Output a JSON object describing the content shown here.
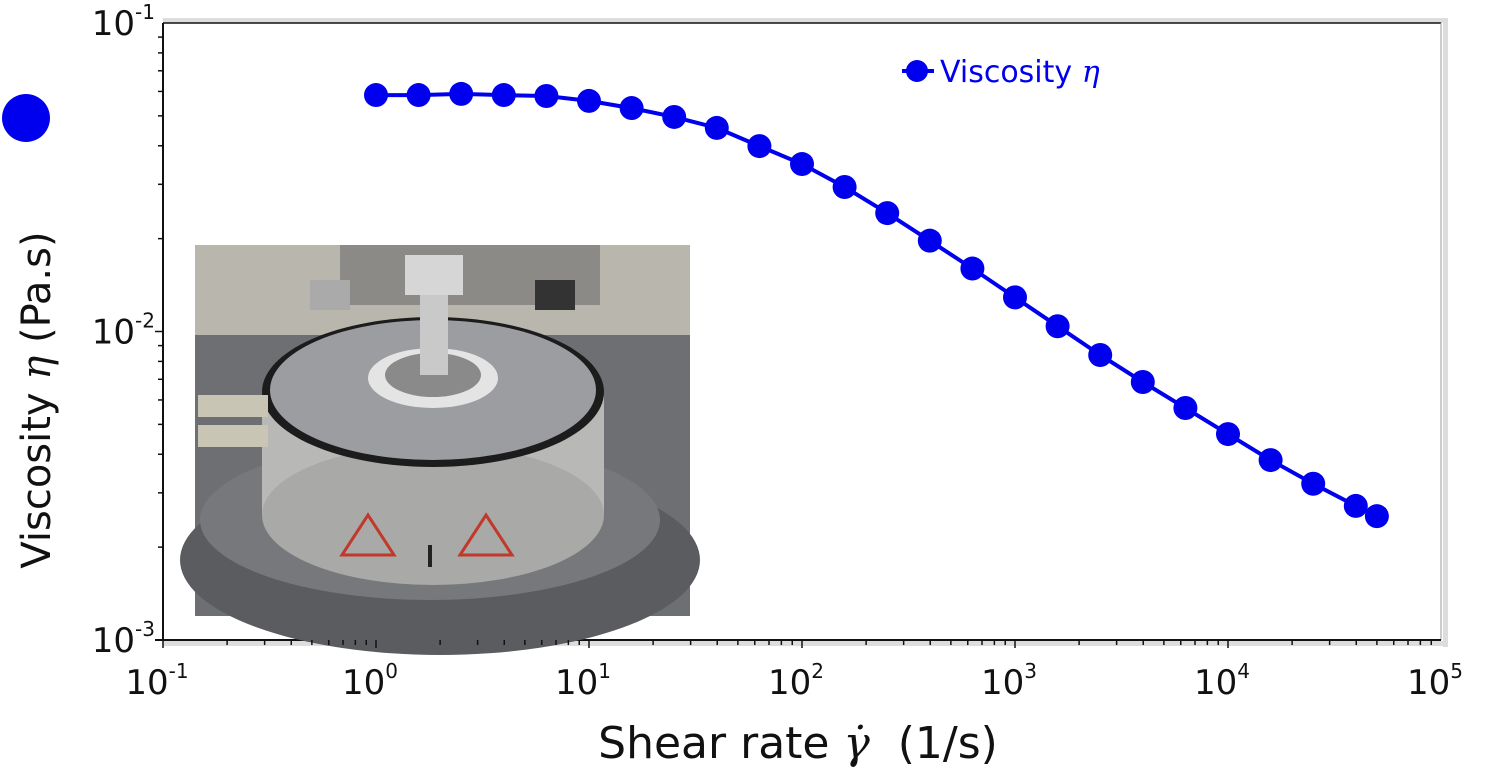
{
  "colors": {
    "series": "#0000EE",
    "axis": "#111111",
    "frame_shadow": "#DDDDDD"
  },
  "chart_data": {
    "type": "line",
    "xlabel": "Shear rate  γ̇  (1/s)",
    "ylabel": "Viscosity η (Pa.s)",
    "x_scale": "log",
    "y_scale": "log",
    "xlim": [
      0.1,
      100000
    ],
    "ylim": [
      0.001,
      0.1
    ],
    "x_ticks": [
      {
        "base": "10",
        "exp": "-1"
      },
      {
        "base": "10",
        "exp": "0"
      },
      {
        "base": "10",
        "exp": "1"
      },
      {
        "base": "10",
        "exp": "2"
      },
      {
        "base": "10",
        "exp": "3"
      },
      {
        "base": "10",
        "exp": "4"
      },
      {
        "base": "10",
        "exp": "5"
      }
    ],
    "y_ticks": [
      {
        "base": "10",
        "exp": "-1"
      },
      {
        "base": "10",
        "exp": "-2"
      },
      {
        "base": "10",
        "exp": "-3"
      }
    ],
    "grid": false,
    "legend_position": "top-center",
    "series": [
      {
        "name": "Viscosity η",
        "marker": "filled-circle",
        "x": [
          1,
          1.585,
          2.512,
          3.981,
          6.31,
          10,
          15.85,
          25.12,
          39.81,
          63.1,
          100,
          158.5,
          251.2,
          398.1,
          631,
          1000,
          1585,
          2512,
          3981,
          6310,
          10000,
          15850,
          25120,
          39810,
          50000
        ],
        "y": [
          0.0584,
          0.0584,
          0.0589,
          0.0584,
          0.058,
          0.0559,
          0.053,
          0.0496,
          0.0457,
          0.0399,
          0.0349,
          0.0294,
          0.0242,
          0.0197,
          0.016,
          0.0129,
          0.0104,
          0.00839,
          0.00686,
          0.00565,
          0.00465,
          0.00383,
          0.00321,
          0.00272,
          0.00252
        ]
      }
    ]
  },
  "legend": {
    "label": "Viscosity ",
    "symbol": "η"
  },
  "axes": {
    "x_title": "Shear rate ",
    "x_symbol": "γ̇",
    "x_unit": "  (1/s)",
    "y_title": "Viscosity ",
    "y_symbol": "η",
    "y_unit": " (Pa.s)"
  },
  "inset": {
    "subject": "rheometer-photo"
  }
}
